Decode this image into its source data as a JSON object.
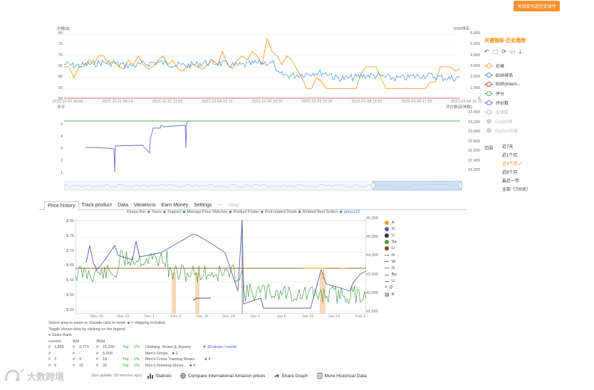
{
  "header": {
    "top_button": "关闭亚马逊历史插件"
  },
  "chart1": {
    "left_label": "价格($)",
    "right_label": "BSR排名",
    "y_ticks": [
      "80",
      "75",
      "70",
      "65",
      "60",
      "55",
      "50"
    ],
    "right_ticks": [
      "6,000",
      "5,000",
      "4,000",
      "3,000",
      "2,000",
      "1,000",
      "0"
    ],
    "x_ticks": [
      "2021-11-02 06:00",
      "2021-11-11 06:14",
      "2021-11-21 11:02",
      "2021-12-04 16:12",
      "2021-12-20 10:32",
      "2021-12-29 15:02",
      "2022-01-08 11:52",
      "2022-01-20 11:20",
      "2022-02-04 16:12"
    ],
    "colors": {
      "price": "#f0a020",
      "bsr": "#3a8ee0",
      "grid": "#eeeeee",
      "baseline": "#e04040"
    }
  },
  "chart2": {
    "left_label": "评分",
    "right_label": "评价数(反馈数)",
    "y_ticks": [
      "5",
      "4",
      "3",
      "2",
      "1"
    ],
    "right_ticks": [
      "23,400",
      "23,200",
      "23,000",
      "22,800",
      "22,600",
      "22,400",
      "22,200"
    ],
    "colors": {
      "rating": "#4caf50",
      "reviews": "#6a6ad0"
    }
  },
  "legend_panel": {
    "title": "关键指标·历史趋势",
    "tools": [
      "↶",
      "⬚",
      "⟳",
      "▭",
      "⤓"
    ],
    "items": [
      {
        "label": "价格",
        "color": "#f0a020",
        "active": true
      },
      {
        "label": "BSR排名",
        "color": "#3a8ee0",
        "active": true
      },
      {
        "label": "BSR(Intern...",
        "color": "#e04040",
        "active": true
      },
      {
        "label": "评分",
        "color": "#4caf50",
        "active": true
      },
      {
        "label": "评价数",
        "color": "#6a6ad0",
        "active": true
      },
      {
        "label": "促销数",
        "color": "#bbbbbb",
        "active": false
      },
      {
        "label": "Deal价格",
        "color": "#cfcfcf",
        "active": false
      },
      {
        "label": "Buybox价格",
        "color": "#cfcfcf",
        "active": false
      }
    ]
  },
  "range": {
    "label": "范围",
    "options": [
      "近7天",
      "近1个月",
      "近3个月",
      "近6个月",
      "最近一年",
      "全部（700天）"
    ],
    "active_index": 2
  },
  "keepa": {
    "tabs": [
      "Price history",
      "Track product",
      "Data",
      "Variations",
      "Earn Money",
      "Settings",
      "---",
      "ebay"
    ],
    "links": [
      "Keepa Box",
      "News",
      "Support",
      "Manage Price Watches",
      "Product Finder",
      "Find related Deals",
      "Related Best Sellers",
      "gmsz123"
    ],
    "y_ticks": [
      "$ 80",
      "$ 75",
      "$ 70",
      "$ 65",
      "$ 60",
      "$ 55",
      "$ 50"
    ],
    "right_ticks": [
      "#6,000",
      "#5,000",
      "#4,000",
      "#3,000",
      "#2,000",
      "#1,000"
    ],
    "x_ticks": [
      "Nov 16",
      "Nov 23",
      "Dec 1",
      "Dec 8",
      "Dec 16",
      "Dec 24",
      "Jan 1",
      "Jan 8",
      "Jan 16",
      "Jan 24",
      "Feb 1"
    ],
    "legend": [
      {
        "label": "A",
        "kind": "dot",
        "color": "#f0a020"
      },
      {
        "label": "N",
        "kind": "dot",
        "color": "#5a5ab0"
      },
      {
        "label": "U",
        "kind": "dot",
        "color": "#333333"
      },
      {
        "label": "Sa",
        "kind": "dot",
        "color": "#4a9a4a"
      },
      {
        "label": "Li",
        "kind": "dot",
        "color": "#8a4a1a"
      },
      {
        "label": "N",
        "kind": "line",
        "color": "#777777"
      },
      {
        "label": "W",
        "kind": "line",
        "color": "#777777"
      },
      {
        "label": "N",
        "kind": "line",
        "color": "#777777"
      },
      {
        "label": "Bu",
        "kind": "line",
        "color": "#777777"
      },
      {
        "label": "Ll",
        "kind": "line",
        "color": "#777777"
      },
      {
        "label": "Q",
        "kind": "text",
        "color": "#333333"
      },
      {
        "label": "R",
        "kind": "text",
        "color": "#333333"
      }
    ],
    "hint1": "Select area to zoom in. Double-click to reset.",
    "hint_shipping": "= shipping included",
    "hint2": "Toggle shown data by clicking on the legend.",
    "sales_rank_label": "Sales Rank",
    "stat_headers": [
      "current",
      "90d",
      "365d"
    ],
    "stat_rows": [
      {
        "vals": [
          "#",
          "1,895",
          "#",
          "2,773",
          "#",
          "15,255",
          "Top",
          "1%"
        ],
        "cat": "Clothing, Shoes & Jewelry",
        "extra": "93 drops / month"
      },
      {
        "vals": [
          "#",
          "-",
          "#",
          "-",
          "#",
          "6,009",
          "",
          ""
        ],
        "cat": "Men's Shops",
        "extra": "2"
      },
      {
        "vals": [
          "#",
          "3",
          "#",
          "4",
          "#",
          "19",
          "Top",
          "1%"
        ],
        "cat": "Men's Cross-Training Shoes",
        "extra": "4"
      },
      {
        "vals": [
          "#",
          "9",
          "#",
          "15",
          "#",
          "26",
          "Top",
          "1%"
        ],
        "cat": "Men's Running Shoes",
        "extra": "4"
      }
    ]
  },
  "bottom": {
    "last_update": "(last update: 39 minutes ago)",
    "actions": [
      "Statistic",
      "Compare international Amazon prices",
      "Share Graph",
      "More Historical Data"
    ]
  },
  "brand": {
    "logo_text": "大数跨境"
  }
}
